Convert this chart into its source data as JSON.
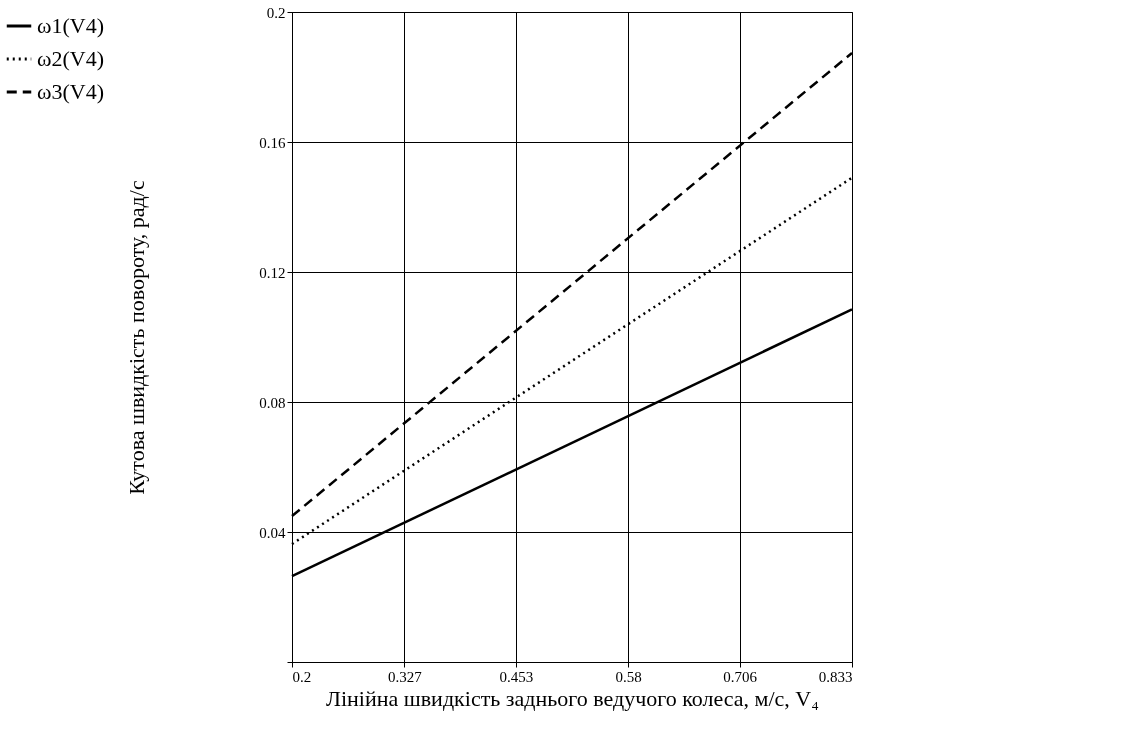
{
  "chart_data": {
    "type": "line",
    "xlabel": "Лінійна швидкість заднього ведучого колеса, м/с, V₄",
    "ylabel": "Кутова швидкість повороту, рад/с",
    "x": [
      0.2,
      0.833
    ],
    "series": [
      {
        "name": "ω1(V4)",
        "color": "#000000",
        "line_style": "solid",
        "values": [
          0.0264,
          0.1085
        ]
      },
      {
        "name": "ω2(V4)",
        "color": "#000000",
        "line_style": "dotted",
        "values": [
          0.0363,
          0.149
        ]
      },
      {
        "name": "ω3(V4)",
        "color": "#000000",
        "line_style": "dashed",
        "values": [
          0.0449,
          0.1874
        ]
      }
    ],
    "xlim": [
      0.2,
      0.833
    ],
    "xticks": [
      0.2,
      0.327,
      0.453,
      0.58,
      0.706,
      0.833
    ],
    "ylim": [
      0,
      0.2
    ],
    "yticks": [
      {
        "value": 0,
        "label": null
      },
      0.04,
      0.08,
      0.12,
      0.16,
      0.2
    ],
    "grid": true,
    "legend": "left",
    "marker": "none"
  }
}
